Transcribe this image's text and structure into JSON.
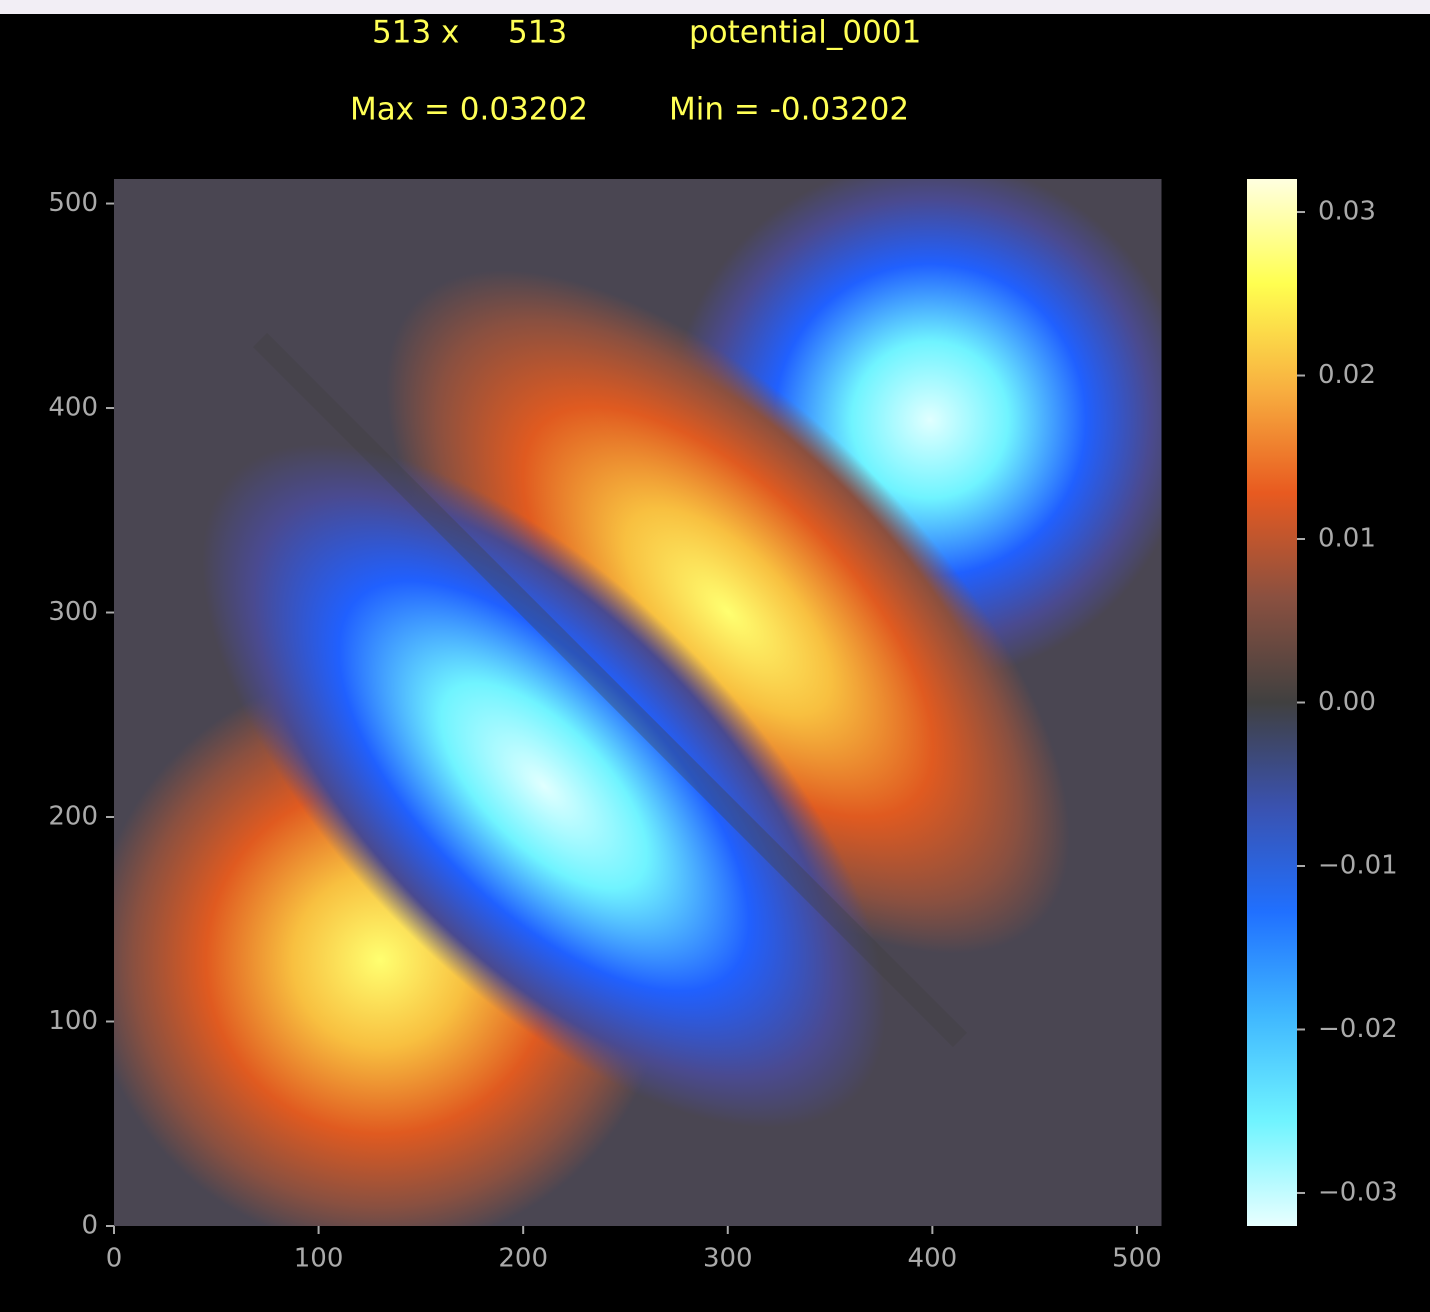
{
  "chart_data": {
    "type": "heatmap",
    "title_lines": [
      [
        "513 x",
        "513",
        "potential_0001"
      ],
      [
        "Max = 0.03202",
        "Min = -0.03202"
      ]
    ],
    "xlim": [
      0,
      512
    ],
    "ylim": [
      0,
      512
    ],
    "xticks": [
      0,
      100,
      200,
      300,
      400,
      500
    ],
    "yticks": [
      0,
      100,
      200,
      300,
      400,
      500
    ],
    "clim": [
      -0.03202,
      0.03202
    ],
    "cticks": [
      {
        "value": -0.03,
        "label": "−0.03"
      },
      {
        "value": -0.02,
        "label": "−0.02"
      },
      {
        "value": -0.01,
        "label": "−0.01"
      },
      {
        "value": 0,
        "label": "0.00"
      },
      0.01,
      0.02,
      0.03
    ],
    "colormap": [
      "#e8ffff",
      "#70f4ff",
      "#40b8ff",
      "#2070ff",
      "#3a52b0",
      "#404040",
      "#8a5040",
      "#e85a20",
      "#f8b040",
      "#ffff50",
      "#ffffe0"
    ],
    "title_color": "#ffff55"
  }
}
